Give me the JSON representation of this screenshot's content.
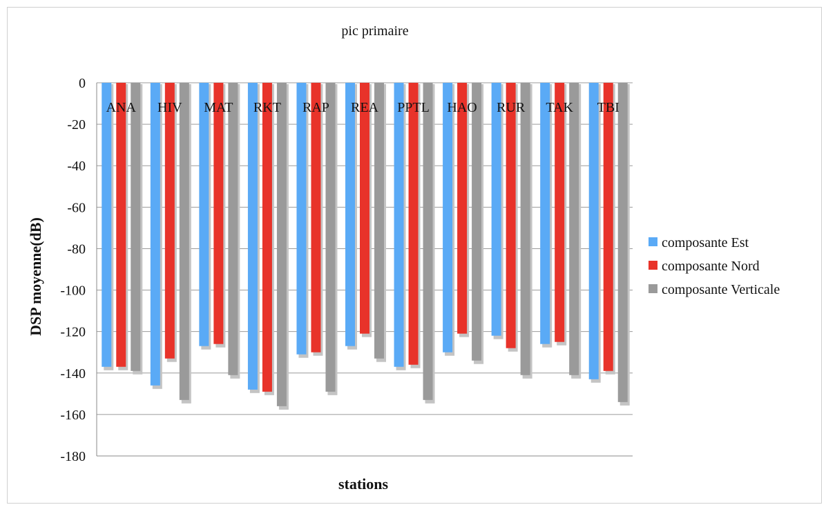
{
  "chart_data": {
    "type": "bar",
    "title": "pic primaire",
    "xlabel": "stations",
    "ylabel": "DSP moyenne(dB)",
    "ylim": [
      -180,
      0
    ],
    "yticks": [
      0,
      -20,
      -40,
      -60,
      -80,
      -100,
      -120,
      -140,
      -160,
      -180
    ],
    "grid": true,
    "legend_position": "right",
    "categories": [
      "ANA",
      "HIV",
      "MAT",
      "RKT",
      "RAP",
      "REA",
      "PPTL",
      "HAO",
      "RUR",
      "TAK",
      "TBI"
    ],
    "series": [
      {
        "name": "composante Est",
        "color": "#5aaaf6",
        "values": [
          -137,
          -146,
          -127,
          -148,
          -131,
          -127,
          -137,
          -130,
          -122,
          -126,
          -143
        ]
      },
      {
        "name": "composante Nord",
        "color": "#e8332a",
        "values": [
          -137,
          -133,
          -126,
          -149,
          -130,
          -121,
          -136,
          -121,
          -128,
          -125,
          -139
        ]
      },
      {
        "name": "composante Verticale",
        "color": "#9a9a9a",
        "values": [
          -139,
          -153,
          -141,
          -156,
          -149,
          -133,
          -153,
          -134,
          -141,
          -141,
          -154
        ]
      }
    ]
  }
}
